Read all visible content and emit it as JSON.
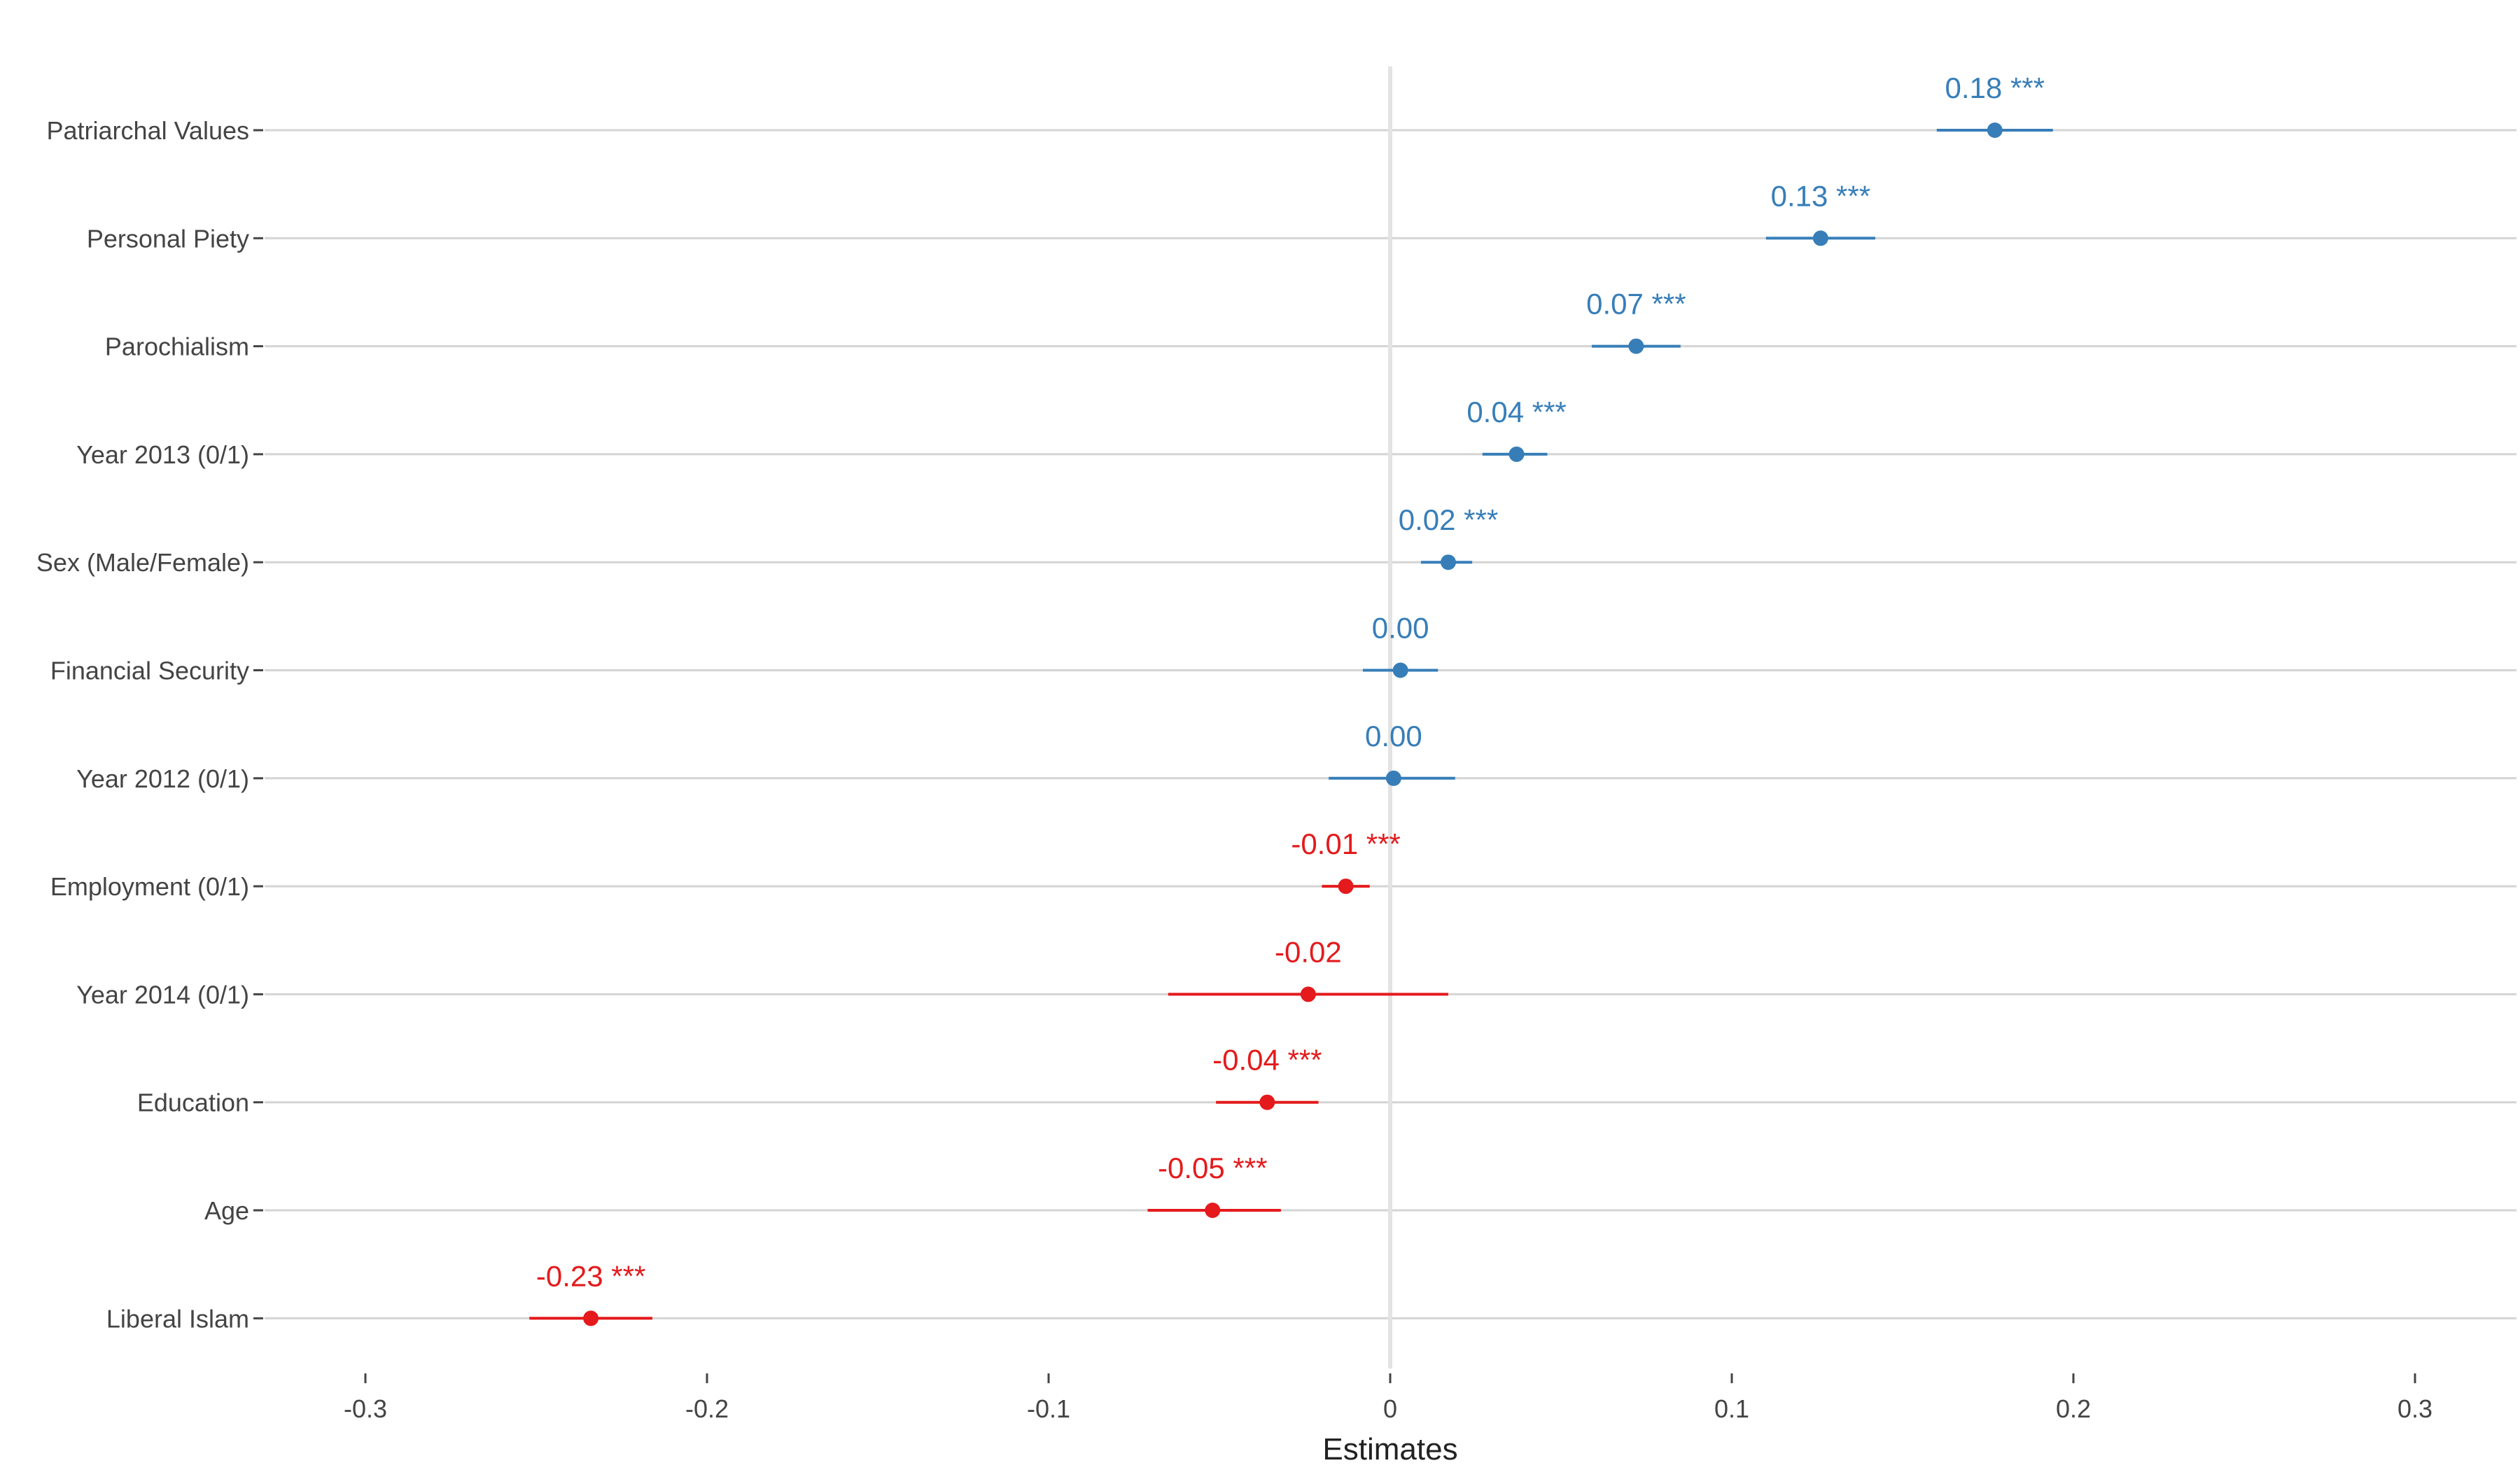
{
  "chart_data": {
    "type": "forest",
    "xlabel": "Estimates",
    "xlim": [
      -0.33,
      0.33
    ],
    "xticks": [
      -0.3,
      -0.2,
      -0.1,
      0,
      0.1,
      0.2,
      0.3
    ],
    "xtick_labels": [
      "-0.3",
      "-0.2",
      "-0.1",
      "0",
      "0.1",
      "0.2",
      "0.3"
    ],
    "grid": true,
    "reference_line": 0,
    "colors": {
      "positive": "#377eb8",
      "negative": "#e41a1c"
    },
    "rows": [
      {
        "label": "Patriarchal Values",
        "estimate": 0.177,
        "lower": 0.16,
        "upper": 0.194,
        "data_label": "0.18 ***"
      },
      {
        "label": "Personal Piety",
        "estimate": 0.126,
        "lower": 0.11,
        "upper": 0.142,
        "data_label": "0.13 ***"
      },
      {
        "label": "Parochialism",
        "estimate": 0.072,
        "lower": 0.059,
        "upper": 0.085,
        "data_label": "0.07 ***"
      },
      {
        "label": "Year 2013 (0/1)",
        "estimate": 0.037,
        "lower": 0.027,
        "upper": 0.046,
        "data_label": "0.04 ***"
      },
      {
        "label": "Sex (Male/Female)",
        "estimate": 0.017,
        "lower": 0.009,
        "upper": 0.024,
        "data_label": "0.02 ***"
      },
      {
        "label": "Financial Security",
        "estimate": 0.003,
        "lower": -0.008,
        "upper": 0.014,
        "data_label": "0.00"
      },
      {
        "label": "Year 2012 (0/1)",
        "estimate": 0.001,
        "lower": -0.018,
        "upper": 0.019,
        "data_label": "0.00"
      },
      {
        "label": "Employment (0/1)",
        "estimate": -0.013,
        "lower": -0.02,
        "upper": -0.006,
        "data_label": "-0.01 ***"
      },
      {
        "label": "Year 2014 (0/1)",
        "estimate": -0.024,
        "lower": -0.065,
        "upper": 0.017,
        "data_label": "-0.02"
      },
      {
        "label": "Education",
        "estimate": -0.036,
        "lower": -0.051,
        "upper": -0.021,
        "data_label": "-0.04 ***"
      },
      {
        "label": "Age",
        "estimate": -0.052,
        "lower": -0.071,
        "upper": -0.032,
        "data_label": "-0.05 ***"
      },
      {
        "label": "Liberal Islam",
        "estimate": -0.234,
        "lower": -0.252,
        "upper": -0.216,
        "data_label": "-0.23 ***"
      }
    ]
  }
}
